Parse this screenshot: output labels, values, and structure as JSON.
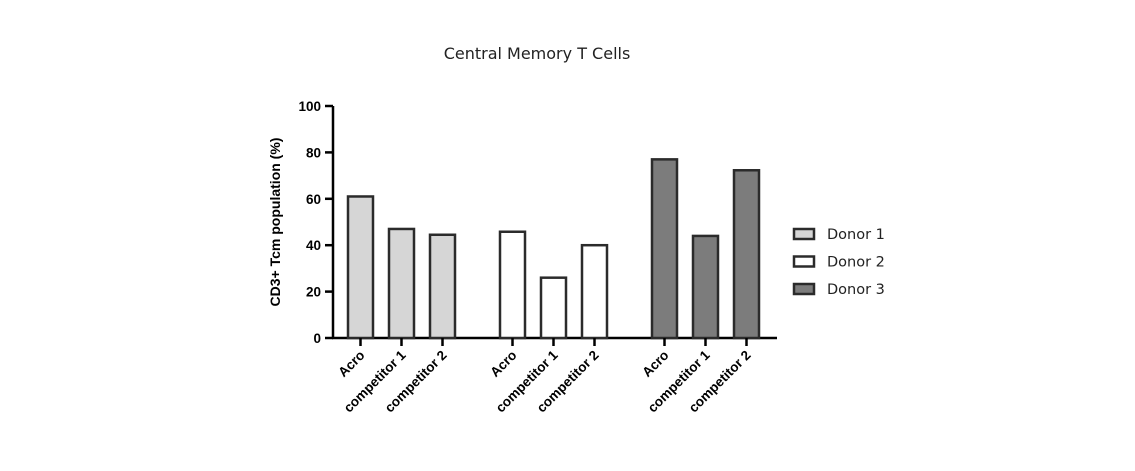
{
  "chart_data": {
    "type": "bar",
    "title": "Central Memory T  Cells",
    "xlabel": "",
    "ylabel": "CD3+ Tcm population (%)",
    "ylim": [
      0,
      100
    ],
    "yticks": [
      0,
      20,
      40,
      60,
      80,
      100
    ],
    "grid": false,
    "legend_position": "right",
    "categories": [
      "Acro",
      "competitor 1",
      "competitor 2"
    ],
    "series": [
      {
        "name": "Donor 1",
        "color": "#d6d6d6",
        "values": [
          61,
          47,
          44.5
        ]
      },
      {
        "name": "Donor 2",
        "color": "#ffffff",
        "values": [
          45.8,
          26,
          40
        ]
      },
      {
        "name": "Donor 3",
        "color": "#7c7c7c",
        "values": [
          77,
          44,
          72.3
        ]
      }
    ]
  }
}
